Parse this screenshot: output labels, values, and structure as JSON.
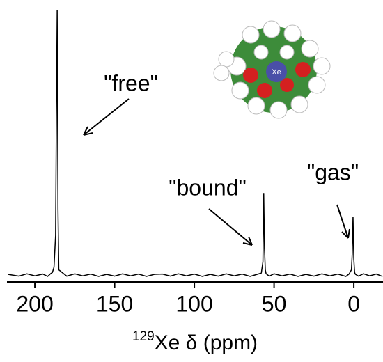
{
  "chart_data": {
    "type": "line",
    "x": [
      217,
      210,
      205,
      200,
      195,
      192,
      190,
      189,
      188,
      187,
      186.5,
      186,
      185.5,
      185,
      180,
      175,
      170,
      165,
      160,
      155,
      150,
      145,
      140,
      135,
      130,
      125,
      120,
      115,
      110,
      105,
      100,
      95,
      90,
      85,
      80,
      75,
      70,
      65,
      60,
      58,
      57,
      56.5,
      56,
      55.5,
      55,
      53,
      50,
      45,
      40,
      35,
      30,
      25,
      20,
      15,
      10,
      5,
      3,
      1.5,
      1,
      0.5,
      0,
      -0.5,
      -1,
      -3,
      -6,
      -10,
      -14,
      -18
    ],
    "values": [
      0.003,
      -0.004,
      0.005,
      -0.003,
      0.004,
      -0.005,
      0.006,
      0.01,
      0.03,
      0.15,
      0.6,
      1.0,
      0.25,
      0.02,
      -0.004,
      0.005,
      -0.003,
      0.004,
      -0.005,
      0.003,
      -0.004,
      0.005,
      -0.003,
      0.004,
      -0.005,
      0.003,
      0.004,
      -0.004,
      0.005,
      -0.003,
      0.004,
      -0.005,
      0.003,
      -0.004,
      0.005,
      -0.003,
      0.004,
      -0.005,
      0.004,
      0.008,
      0.05,
      0.31,
      0.1,
      0.02,
      0.005,
      -0.004,
      0.005,
      -0.003,
      0.004,
      -0.005,
      0.003,
      -0.004,
      0.005,
      -0.003,
      0.004,
      -0.005,
      0.004,
      0.02,
      0.08,
      0.22,
      0.06,
      0.01,
      0.003,
      -0.004,
      0.005,
      -0.003,
      0.004,
      -0.005
    ],
    "color": "#000000",
    "xlim": [
      217.5,
      -18.3
    ],
    "xticks": [
      200,
      150,
      100,
      50,
      0
    ],
    "ylim": [
      -0.026,
      1.0
    ],
    "xlabel_sup": "129",
    "xlabel": "Xe δ (ppm)",
    "annotations": [
      "\"free\"",
      "\"bound\"",
      "\"gas\""
    ],
    "molecule_label": "Xe"
  }
}
